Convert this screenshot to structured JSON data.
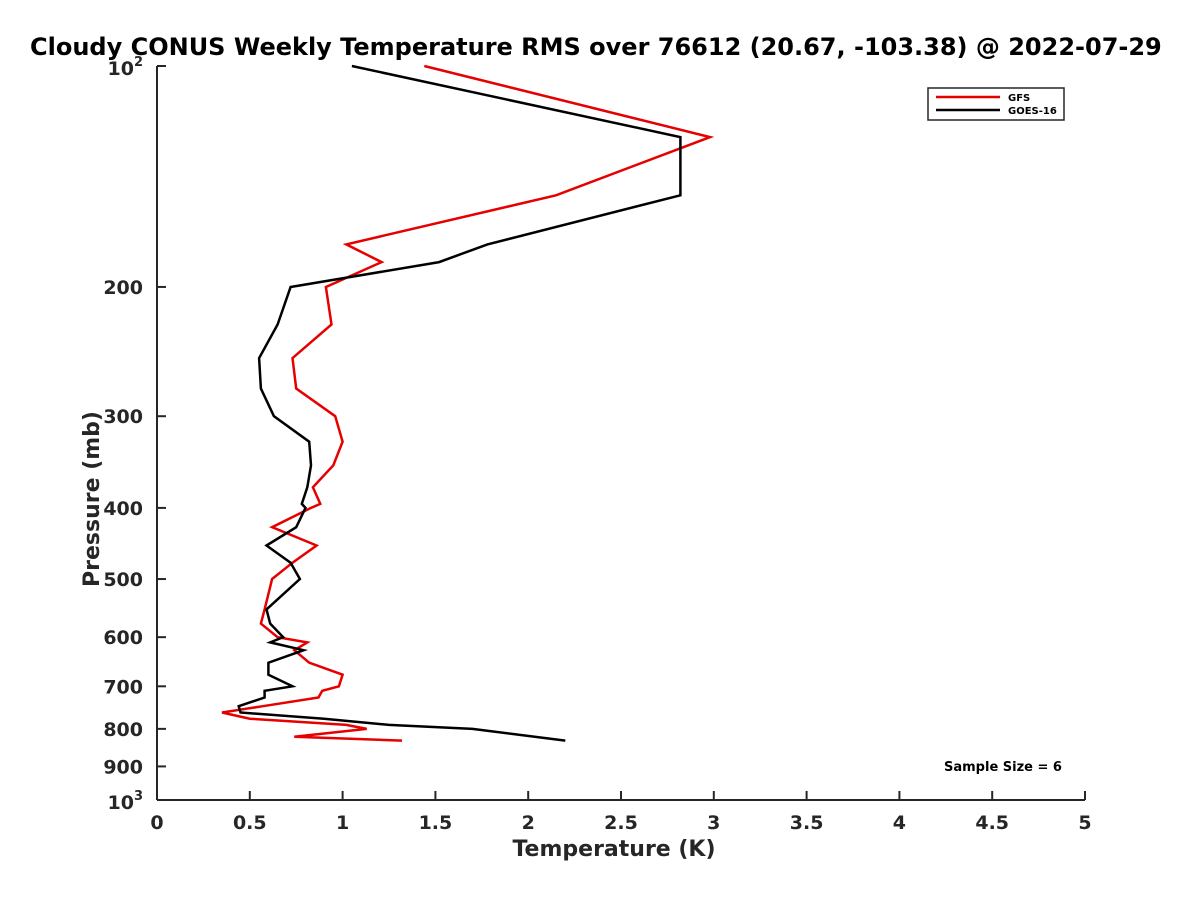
{
  "chart_data": {
    "type": "line",
    "title": "Cloudy CONUS Weekly Temperature RMS over 76612 (20.67, -103.38) @ 2022-07-29",
    "xlabel": "Temperature (K)",
    "ylabel": "Pressure (mb)",
    "xlim": [
      0,
      5
    ],
    "ylim": [
      1000,
      100
    ],
    "y_scale": "log",
    "y_reversed": true,
    "x_ticks": [
      "0",
      "0.5",
      "1",
      "1.5",
      "2",
      "2.5",
      "3",
      "3.5",
      "4",
      "4.5",
      "5"
    ],
    "y_ticks": [
      {
        "value": 100,
        "base": "10",
        "exp": "2"
      },
      {
        "value": 200,
        "label": "200"
      },
      {
        "value": 300,
        "label": "300"
      },
      {
        "value": 400,
        "label": "400"
      },
      {
        "value": 500,
        "label": "500"
      },
      {
        "value": 600,
        "label": "600"
      },
      {
        "value": 700,
        "label": "700"
      },
      {
        "value": 800,
        "label": "800"
      },
      {
        "value": 900,
        "label": "900"
      },
      {
        "value": 1000,
        "base": "10",
        "exp": "3"
      }
    ],
    "grid": false,
    "legend_position": "top-right",
    "annotation": "Sample Size = 6",
    "series": [
      {
        "name": "GFS",
        "color": "#e60000",
        "points": [
          [
            1.44,
            100
          ],
          [
            2.98,
            125
          ],
          [
            2.15,
            150
          ],
          [
            1.02,
            175
          ],
          [
            1.21,
            185
          ],
          [
            0.91,
            200
          ],
          [
            0.94,
            225
          ],
          [
            0.73,
            250
          ],
          [
            0.75,
            275
          ],
          [
            0.96,
            300
          ],
          [
            1.0,
            325
          ],
          [
            0.95,
            350
          ],
          [
            0.84,
            375
          ],
          [
            0.88,
            395
          ],
          [
            0.83,
            400
          ],
          [
            0.62,
            425
          ],
          [
            0.86,
            450
          ],
          [
            0.73,
            475
          ],
          [
            0.62,
            500
          ],
          [
            0.58,
            550
          ],
          [
            0.56,
            575
          ],
          [
            0.65,
            600
          ],
          [
            0.81,
            610
          ],
          [
            0.74,
            625
          ],
          [
            0.82,
            650
          ],
          [
            1.0,
            675
          ],
          [
            0.98,
            700
          ],
          [
            0.89,
            710
          ],
          [
            0.87,
            725
          ],
          [
            0.57,
            745
          ],
          [
            0.35,
            760
          ],
          [
            0.5,
            775
          ],
          [
            1.02,
            790
          ],
          [
            1.13,
            800
          ],
          [
            0.74,
            820
          ],
          [
            1.32,
            830
          ]
        ]
      },
      {
        "name": "GOES-16",
        "color": "#000000",
        "points": [
          [
            1.05,
            100
          ],
          [
            2.82,
            125
          ],
          [
            2.82,
            150
          ],
          [
            1.78,
            175
          ],
          [
            1.52,
            185
          ],
          [
            0.72,
            200
          ],
          [
            0.65,
            225
          ],
          [
            0.55,
            250
          ],
          [
            0.56,
            275
          ],
          [
            0.63,
            300
          ],
          [
            0.82,
            325
          ],
          [
            0.83,
            350
          ],
          [
            0.81,
            375
          ],
          [
            0.78,
            395
          ],
          [
            0.8,
            400
          ],
          [
            0.75,
            425
          ],
          [
            0.59,
            450
          ],
          [
            0.72,
            475
          ],
          [
            0.77,
            500
          ],
          [
            0.59,
            550
          ],
          [
            0.61,
            575
          ],
          [
            0.68,
            600
          ],
          [
            0.61,
            610
          ],
          [
            0.79,
            625
          ],
          [
            0.6,
            650
          ],
          [
            0.6,
            675
          ],
          [
            0.73,
            700
          ],
          [
            0.58,
            710
          ],
          [
            0.58,
            725
          ],
          [
            0.44,
            745
          ],
          [
            0.45,
            760
          ],
          [
            0.9,
            775
          ],
          [
            1.25,
            790
          ],
          [
            1.7,
            800
          ],
          [
            2.2,
            830
          ]
        ]
      }
    ]
  }
}
